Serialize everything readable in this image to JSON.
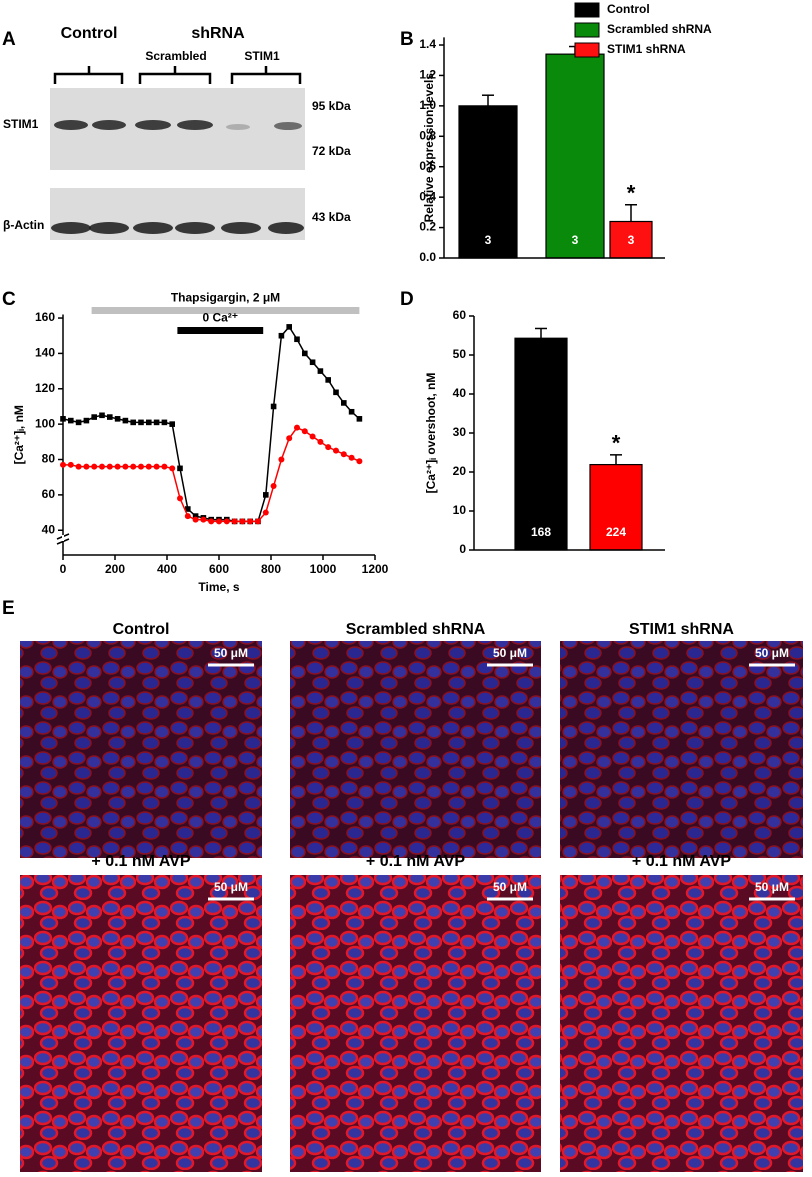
{
  "panel_labels": [
    "A",
    "B",
    "C",
    "D",
    "E"
  ],
  "blot": {
    "group_labels": [
      "Control",
      "shRNA"
    ],
    "subgroup_labels": [
      "Scrambled",
      "STIM1"
    ],
    "rows": [
      {
        "label": "STIM1",
        "markers": [
          "95 kDa",
          "72 kDa"
        ]
      },
      {
        "label": "β-Actin",
        "markers": [
          "43 kDa"
        ]
      }
    ]
  },
  "chart_data": [
    {
      "type": "bar",
      "ylabel": "Relative expression levels",
      "series": [
        {
          "name": "Control",
          "color": "#000000",
          "values": [
            1.0
          ],
          "errors": [
            0.07
          ],
          "n_labels": [
            "3"
          ]
        },
        {
          "name": "Scrambled shRNA",
          "color": "#0a8a0a",
          "values": [
            1.34
          ],
          "errors": [
            0.05
          ],
          "n_labels": [
            "3"
          ]
        },
        {
          "name": "STIM1 shRNA",
          "color": "#ff1010",
          "values": [
            0.24
          ],
          "errors": [
            0.11
          ],
          "n_labels": [
            "3"
          ],
          "significance": "*"
        }
      ],
      "ylim": [
        0,
        1.45
      ],
      "yticks": [
        {
          "value": 0,
          "label": "0.0"
        },
        {
          "value": 0.2,
          "label": "0.2"
        },
        {
          "value": 0.4,
          "label": "0.4"
        },
        {
          "value": 0.6,
          "label": "0.6"
        },
        {
          "value": 0.8,
          "label": "0.8"
        },
        {
          "value": 1,
          "label": "1.0"
        },
        {
          "value": 1.2,
          "label": "1.2"
        },
        {
          "value": 1.4,
          "label": "1.4"
        }
      ],
      "legend": "top-right"
    },
    {
      "type": "line",
      "xlabel": "Time, s",
      "ylabel": "[Ca²⁺]ᵢ, nM",
      "x": [
        0,
        30,
        60,
        90,
        120,
        150,
        180,
        210,
        240,
        270,
        300,
        330,
        360,
        390,
        420,
        450,
        480,
        510,
        540,
        570,
        600,
        630,
        660,
        690,
        720,
        750,
        780,
        810,
        840,
        870,
        900,
        930,
        960,
        990,
        1020,
        1050,
        1080,
        1110,
        1140
      ],
      "series": [
        {
          "color": "#000000",
          "marker": "square",
          "values": [
            103,
            102,
            101,
            102,
            104,
            105,
            104,
            103,
            102,
            101,
            101,
            101,
            101,
            101,
            100,
            75,
            52,
            48,
            47,
            46,
            46,
            46,
            45,
            45,
            45,
            45,
            60,
            110,
            150,
            155,
            148,
            140,
            135,
            130,
            125,
            118,
            112,
            107,
            103
          ]
        },
        {
          "color": "#ff0000",
          "marker": "circle",
          "values": [
            77,
            77,
            76,
            76,
            76,
            76,
            76,
            76,
            76,
            76,
            76,
            76,
            76,
            76,
            75,
            58,
            48,
            46,
            46,
            45,
            45,
            45,
            45,
            45,
            45,
            45,
            50,
            65,
            80,
            92,
            98,
            96,
            93,
            90,
            87,
            85,
            83,
            81,
            79
          ]
        }
      ],
      "xlim": [
        0,
        1200
      ],
      "xticks": [
        0,
        200,
        400,
        600,
        800,
        1000,
        1200
      ],
      "ylim": [
        26,
        162
      ],
      "yticks": [
        40,
        60,
        80,
        100,
        120,
        140,
        160
      ],
      "annotations": [
        {
          "text": "Thapsigargin, 2 μM",
          "x": [
            110,
            1140
          ],
          "color": "#c0c0c0"
        },
        {
          "text": "0 Ca²⁺",
          "x": [
            440,
            770
          ],
          "color": "#000000"
        }
      ]
    },
    {
      "type": "bar",
      "ylabel": "[Ca²⁺]ᵢ overshoot, nM",
      "values": [
        54.3,
        21.9
      ],
      "errors": [
        2.5,
        2.5
      ],
      "colors": [
        "#000000",
        "#ff0000"
      ],
      "n_labels": [
        "168",
        "224"
      ],
      "significance": [
        null,
        "*"
      ],
      "ylim": [
        0,
        60
      ],
      "yticks": [
        0,
        10,
        20,
        30,
        40,
        50,
        60
      ]
    }
  ],
  "images": {
    "column_titles": [
      "Control",
      "Scrambled shRNA",
      "STIM1 shRNA"
    ],
    "treatment_titles": [
      "+ 0.1 nM AVP",
      "+ 0.1 nM AVP",
      "+ 0.1 nM AVP"
    ],
    "scale_bar": "50 μM"
  }
}
